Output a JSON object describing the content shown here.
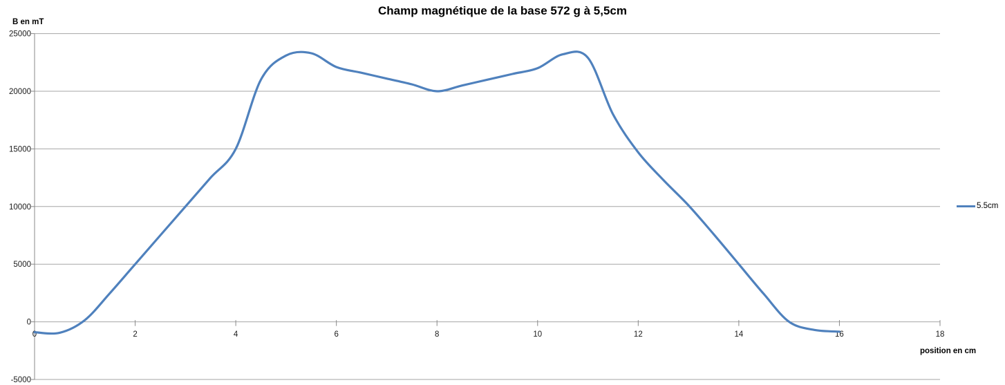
{
  "title": "Champ magnétique de la base 572 g à 5,5cm",
  "legend": {
    "label": "5.5cm"
  },
  "colors": {
    "series": "#4F81BD",
    "grid": "#A6A6A6",
    "axis": "#898989",
    "text": "#1a1a1a",
    "background": "#FFFFFF"
  },
  "chart_data": {
    "type": "line",
    "title": "Champ magnétique de la base 572 g à 5,5cm",
    "xlabel": "position en cm",
    "ylabel": "B en mT",
    "xlim": [
      0,
      18
    ],
    "ylim": [
      -5000,
      25000
    ],
    "x_ticks": [
      0,
      2,
      4,
      6,
      8,
      10,
      12,
      14,
      16,
      18
    ],
    "y_ticks": [
      25000,
      20000,
      15000,
      10000,
      5000,
      0,
      -5000
    ],
    "grid": true,
    "legend_position": "right",
    "series": [
      {
        "name": "5.5cm",
        "color": "#4F81BD",
        "smooth": true,
        "points": [
          [
            0,
            -900
          ],
          [
            0.5,
            -950
          ],
          [
            1,
            150
          ],
          [
            1.5,
            2500
          ],
          [
            2,
            5000
          ],
          [
            2.5,
            7500
          ],
          [
            3,
            10000
          ],
          [
            3.5,
            12500
          ],
          [
            4,
            15000
          ],
          [
            4.5,
            21000
          ],
          [
            5,
            23100
          ],
          [
            5.5,
            23300
          ],
          [
            6,
            22100
          ],
          [
            6.5,
            21600
          ],
          [
            7,
            21100
          ],
          [
            7.5,
            20600
          ],
          [
            8,
            20000
          ],
          [
            8.5,
            20500
          ],
          [
            9,
            21000
          ],
          [
            9.5,
            21500
          ],
          [
            10,
            22000
          ],
          [
            10.5,
            23200
          ],
          [
            11,
            22900
          ],
          [
            11.5,
            18000
          ],
          [
            12,
            14700
          ],
          [
            12.5,
            12300
          ],
          [
            13,
            10100
          ],
          [
            13.5,
            7600
          ],
          [
            14,
            5000
          ],
          [
            14.5,
            2400
          ],
          [
            15,
            0
          ],
          [
            15.5,
            -700
          ],
          [
            16,
            -850
          ]
        ]
      }
    ]
  }
}
